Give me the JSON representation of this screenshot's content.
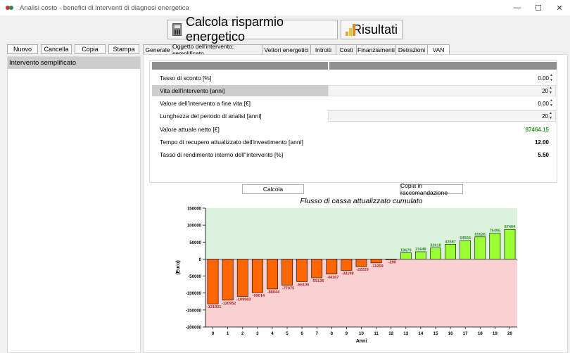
{
  "window": {
    "title": "Analisi costo - benefici di interventi di diagnosi energetica",
    "minimize": "—",
    "maximize": "☐",
    "close": "✕"
  },
  "toolbar": {
    "calcola_label": "Calcola risparmio energetico",
    "risultati_label": "Risultati"
  },
  "left_buttons": [
    "Nuovo",
    "Cancella",
    "Copia",
    "Stampa"
  ],
  "left_list": [
    "Intervento semplificato"
  ],
  "tabs": [
    "Generale",
    "Oggetto dell'intervento: semplificato",
    "Vettori energetici",
    "Introiti",
    "Costi",
    "Finanziamenti",
    "Detrazioni",
    "VAN"
  ],
  "active_tab": "VAN",
  "fields": [
    {
      "label": "Tasso di sconto [%]",
      "value": "0.00",
      "spinner": true
    },
    {
      "label": "Vita dell'intervento [anni]",
      "value": "20",
      "spinner": true
    },
    {
      "label": "Valore dell'intervento a fine vita [€]",
      "value": "0.00",
      "spinner": true
    },
    {
      "label": "Lunghezza del periodo di analisi [anni]",
      "value": "20",
      "spinner": true
    },
    {
      "label": "Valore attuale netto [€]",
      "value": "87464.15",
      "spinner": false
    },
    {
      "label": "Tempo di recupero attualizzato dell'investimento [anni]",
      "value": "12.00",
      "spinner": false
    },
    {
      "label": "Tasso di rendimento interno dell''intervento [%]",
      "value": "5.50",
      "spinner": false
    }
  ],
  "buttons": {
    "calcola": "Calcola",
    "copia_raccomandazione": "Copia in raccomandazione"
  },
  "colors": {
    "positive_zone": "#dcf2dc",
    "negative_zone": "#f8d2d2",
    "negative_bar": "#ff6600",
    "positive_bar": "#99ff33",
    "negative_label": "#b22222",
    "positive_label": "#2a8c2a"
  },
  "chart_data": {
    "type": "bar",
    "title": "Flusso di cassa attualizzato cumulato",
    "xlabel": "Anni",
    "ylabel": "(Euro)",
    "ylim": [
      -200000,
      150000
    ],
    "yticks": [
      "150000",
      "100000",
      "50000",
      "0",
      "-50000",
      "-100000",
      "-150000",
      "-200000"
    ],
    "categories": [
      "0",
      "1",
      "2",
      "3",
      "4",
      "5",
      "6",
      "7",
      "8",
      "9",
      "10",
      "11",
      "12",
      "13",
      "14",
      "15",
      "16",
      "17",
      "18",
      "19",
      "20"
    ],
    "values": [
      -131921,
      -120952,
      -109983,
      -99014,
      -88044,
      -77075,
      -66106,
      -55136,
      -44167,
      -33198,
      -22229,
      -11259,
      -290,
      18679,
      21648,
      32618,
      43587,
      54556,
      65526,
      76495,
      87464
    ]
  }
}
